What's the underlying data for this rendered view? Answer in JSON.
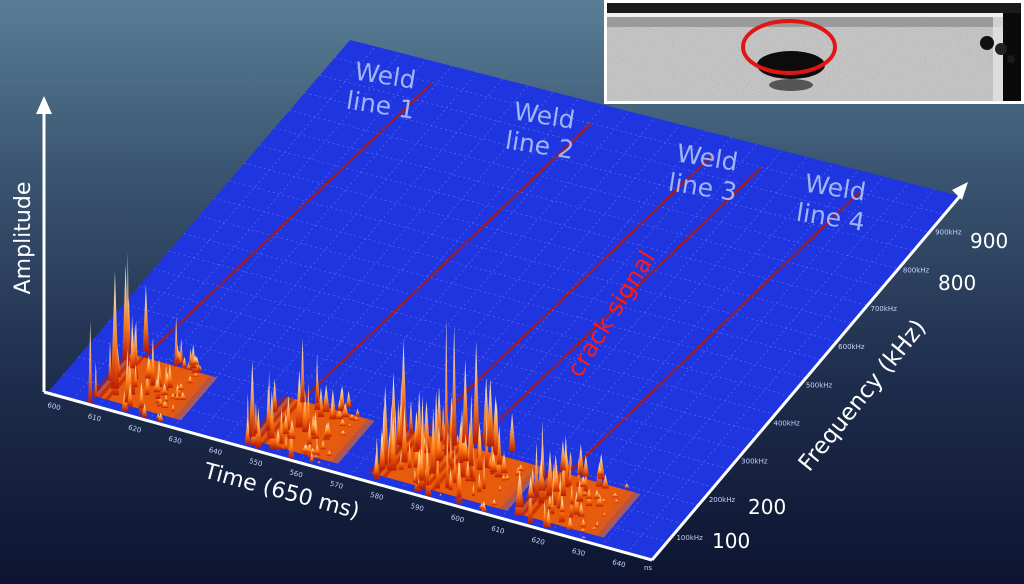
{
  "chart_data": {
    "type": "waterfall-3d",
    "x_axis": {
      "label": "Time (650 ms)",
      "tick_labels": [
        "600",
        "610",
        "620",
        "630",
        "640",
        "550",
        "560",
        "570",
        "580",
        "590",
        "600",
        "610",
        "620",
        "630",
        "640"
      ]
    },
    "y_axis": {
      "label": "Frequency (kHz)",
      "tick_labels_small": [
        "100kHz",
        "200kHz",
        "300kHz",
        "400kHz",
        "500kHz",
        "600kHz",
        "700kHz",
        "800kHz",
        "900kHz"
      ],
      "tick_labels_large": [
        "100",
        "200",
        "800",
        "900"
      ]
    },
    "z_axis": {
      "label": "Amplitude"
    },
    "corner_label": "ns",
    "annotations": {
      "weld_labels": [
        "Weld\nline 1",
        "Weld\nline 2",
        "Weld\nline 3",
        "Weld\nline 4"
      ],
      "crack_label": "crack signal"
    },
    "bursts": [
      {
        "segment": 1,
        "time_position": 0.06,
        "peak": 1.0
      },
      {
        "segment": 2,
        "time_position": 0.32,
        "peak": 0.72
      },
      {
        "segment": 3,
        "time_position": 0.52,
        "peak": 0.7
      },
      {
        "segment": 3,
        "time_position": 0.6,
        "peak": 0.98
      },
      {
        "segment": 4,
        "time_position": 0.76,
        "peak": 0.55
      }
    ],
    "colors": {
      "surface": "#1f35e0",
      "grid": "#6f80f2",
      "burst_low": "#b81800",
      "burst_mid": "#ff7a10",
      "burst_high": "#fff6d8",
      "crack_label": "#ff1a1a",
      "weld_label": "#9fb5f4",
      "highlight_circle": "#e01515"
    }
  }
}
